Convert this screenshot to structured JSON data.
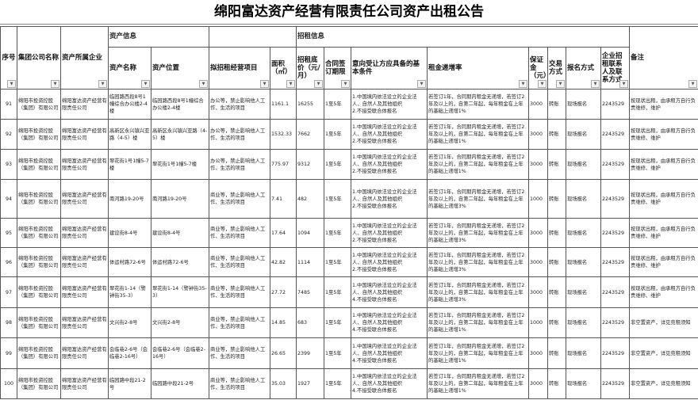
{
  "title": "绵阳富达资产经营有限责任公司资产出租公告",
  "groups": {
    "asset_info": "资产信息",
    "lease_info": "招租信息"
  },
  "headers": [
    "序号",
    "集团公司名称",
    "资产所属企业",
    "资产名称",
    "资产位置",
    "拟招租经营项目",
    "面积（㎡）",
    "招租底价（元/月）",
    "合同签订期限",
    "意向受让方应具备的基本条件",
    "租金递增率",
    "保证金（元）",
    "交易方式",
    "报名方式",
    "企业招租联系人及联系方式",
    "备注"
  ],
  "filter_icon": "dropdown-arrow-icon",
  "rows": [
    [
      "91",
      "绵阳市投资控股（集团）有限公司",
      "绵阳富达资产经营有限责任公司",
      "临园路西段8号1幢综合办公楼2-4楼",
      "临园路西段8号1幢综合办公楼2-4楼",
      "办公等，禁止影响他人工作、生活的项目",
      "1161.1",
      "16255",
      "1至5年",
      "1.中国境内依法设立的企业法人、自然人及其他组织\n2.不接受联合体报名",
      "若签订1年，合同期内租金无递增，若签订2年及以上的，自第二年起，每年租金在上年的基础上递增1%",
      "3000",
      "转账",
      "现场报名",
      "2243529",
      "按现状出租，由承租方自行负责维修、维护"
    ],
    [
      "92",
      "绵阳市投资控股（集团）有限公司",
      "绵阳富达资产经营有限责任公司",
      "高新区永兴镇兴亚路（4-5）楼",
      "高新区永兴镇兴亚路（4-5）楼",
      "办公等，禁止影响他人工作、生活的项目",
      "1532.33",
      "7662",
      "1至5年",
      "1.中国境内依法设立的企业法人、自然人及其他组织\n2.不接受联合体报名",
      "若签订1年，合同期内租金无递增，若签订2年及以上的，自第二年起，每年租金在上年的基础上递增1%",
      "3000",
      "转账",
      "现场报名",
      "2243529",
      "按现状出租，由承租方自行负责维修、维护"
    ],
    [
      "93",
      "绵阳市投资控股（集团）有限公司",
      "绵阳富达资产经营有限责任公司",
      "翠花街1号1幢5-7楼",
      "翠花街1号1幢5-7楼",
      "办公等，禁止影响他人工作、生活的项目",
      "775.97",
      "9312",
      "1至5年",
      "1.中国境内依法设立的企业法人、自然人及其他组织\n2.不接受联合体报名",
      "若签订1年，合同期内租金无递增，若签订2年及以上的，自第二年起，每年租金在上年的基础上递增1%",
      "3000",
      "转账",
      "现场报名",
      "2243529",
      "按现状出租，由承租方自行负责维修、维护"
    ],
    [
      "94",
      "绵阳市投资控股（集团）有限公司",
      "绵阳富达资产经营有限责任公司",
      "南河路19-20号",
      "南河路19-20号",
      "商业等，禁止影响他人工作、生活的项目",
      "7.41",
      "482",
      "1至5年",
      "1.中国境内依法设立的企业法人、自然人及其他组织\n2.不接受联合体报名",
      "若签订1年，合同期内租金无递增，若签订2年及以上的，自第二年起，每年租金在上年的基础上递增3%",
      "1000",
      "转账",
      "现场报名",
      "2243529",
      "按现状出租，由承租方自行负责维修、维护"
    ],
    [
      "95",
      "绵阳市投资控股（集团）有限公司",
      "绵阳富达资产经营有限责任公司",
      "建设街8-4号",
      "建设街8-4号",
      "商业等，禁止影响他人工作、生活的项目",
      "17.64",
      "1094",
      "1至5年",
      "1.中国境内依法设立的企业法人、自然人及其他组织\n2.不接受联合体报名",
      "若签订1年，合同期内租金无递增，若签订2年及以上的，自第二年起，每年租金在上年的基础上递增3%",
      "3000",
      "转账",
      "现场报名",
      "2243529",
      "按现状出租，由承租方自行负责维修、维护"
    ],
    [
      "96",
      "绵阳市投资控股（集团）有限公司",
      "绵阳富达资产经营有限责任公司",
      "体运村路72-6号",
      "体运村路72-6号",
      "商业等，禁止影响他人工作、生活的项目",
      "42.82",
      "1114",
      "1至5年",
      "1.中国境内依法设立的企业法人、自然人及其他组织\n2.不接受联合体报名",
      "若签订1年，合同期内租金无递增，若签订2年及以上的，自第二年起，每年租金在上年的基础上递增3%",
      "3000",
      "转账",
      "现场报名",
      "2243529",
      "按现状出租，由承租方自行负责维修、维护"
    ],
    [
      "97",
      "绵阳市投资控股（集团）有限公司",
      "绵阳富达资产经营有限责任公司",
      "翠花街1-14（警钟街35-3）",
      "翠花街1-14（警钟街35-3）",
      "商业等，禁止影响他人工作、生活的项目",
      "27.72",
      "7485",
      "1至5年",
      "1.中国境内依法设立的企业法人、自然人及其他组织\n4.不接受联合体报名",
      "若签订1年，合同期内租金无递增，若签订2年及以上的，自第二年起，每年租金在上年的基础上递增3%",
      "3000",
      "转账",
      "现场报名",
      "2243529",
      "按现状出租，由承租方自行负责维修、维护"
    ],
    [
      "98",
      "绵阳市投资控股（集团）有限公司",
      "绵阳富达资产经营有限责任公司",
      "文兴街2-8号",
      "文兴街2-8号",
      "商业等，禁止影响他人工作、生活的项目",
      "14.85",
      "683",
      "1至5年",
      "1.中国境内依法设立的企业法人、自然人及其他组织\n4.不接受联合体报名",
      "若签订1年，合同期内租金无递增，若签订2年及以上的，自第二年起，每年租金在上年的基础上递增1%",
      "1000",
      "转账",
      "现场报名",
      "2243529",
      "非空置资产，详见竞租须知"
    ],
    [
      "99",
      "绵阳市投资控股（集团）有限公司",
      "绵阳富达资产经营有限责任公司",
      "会临巷2-6号（会临巷2-16号）",
      "会临巷2-6号（会临巷2-16号）",
      "商业等，禁止影响他人工作、生活的项目",
      "26.65",
      "2399",
      "1至5年",
      "1.中国境内依法设立的企业法人、自然人及其他组织\n4.不接受联合体报名",
      "若签订1年，合同期内租金无递增，若签订2年及以上的，自第二年起，每年租金在上年的基础上递增1%",
      "3000",
      "转账",
      "现场报名",
      "2243529",
      "非空置资产，详见竞租须知"
    ],
    [
      "100",
      "绵阳市投资控股（集团）有限公司",
      "绵阳富达资产经营有限责任公司",
      "临园路中段21-2号",
      "临园路中段21-2号",
      "商业等，禁止影响他人工作、生活的项目",
      "35.03",
      "1927",
      "1至5年",
      "1.中国境内依法设立的企业法人、自然人及其他组织\n4.不接受联合体报名",
      "若签订1年，合同期内租金无递增，若签订2年及以上的，自第二年起，每年租金在上年的基础上递增1%",
      "3000",
      "转账",
      "现场报名",
      "2243529",
      "非空置资产，详见竞租须知"
    ]
  ]
}
